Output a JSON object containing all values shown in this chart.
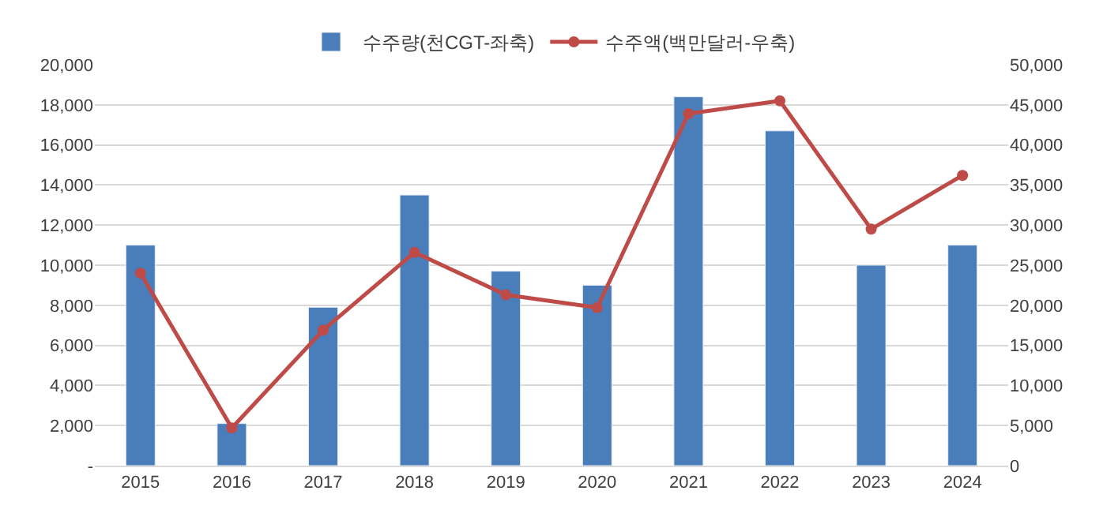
{
  "chart_data": {
    "type": "bar",
    "categories": [
      "2015",
      "2016",
      "2017",
      "2018",
      "2019",
      "2020",
      "2021",
      "2022",
      "2023",
      "2024"
    ],
    "series": [
      {
        "name": "수주량(천CGT-좌축)",
        "color": "#4a7ebb",
        "values": [
          11000,
          2100,
          7900,
          13500,
          9700,
          9000,
          18400,
          16700,
          10000,
          11000
        ]
      },
      {
        "name": "수주액(백만달러-우축)",
        "type": "line",
        "axis": "y2",
        "color": "#be4b48",
        "marker": "circle",
        "values": [
          24000,
          4700,
          16900,
          26600,
          21300,
          19700,
          43900,
          45500,
          29500,
          36200
        ]
      }
    ],
    "ylim": [
      0,
      20000
    ],
    "yticks": [
      {
        "value": 0,
        "label": "-"
      },
      {
        "value": 2000,
        "label": "2,000"
      },
      {
        "value": 4000,
        "label": "4,000"
      },
      {
        "value": 6000,
        "label": "6,000"
      },
      {
        "value": 8000,
        "label": "8,000"
      },
      {
        "value": 10000,
        "label": "10,000"
      },
      {
        "value": 12000,
        "label": "12,000"
      },
      {
        "value": 14000,
        "label": "14,000"
      },
      {
        "value": 16000,
        "label": "16,000"
      },
      {
        "value": 18000,
        "label": "18,000"
      },
      {
        "value": 20000,
        "label": "20,000"
      }
    ],
    "y2lim": [
      0,
      50000
    ],
    "y2ticks": [
      0,
      {
        "value": 5000,
        "label": "5,000"
      },
      {
        "value": 10000,
        "label": "10,000"
      },
      {
        "value": 15000,
        "label": "15,000"
      },
      {
        "value": 20000,
        "label": "20,000"
      },
      {
        "value": 25000,
        "label": "25,000"
      },
      {
        "value": 30000,
        "label": "30,000"
      },
      {
        "value": 35000,
        "label": "35,000"
      },
      {
        "value": 40000,
        "label": "40,000"
      },
      {
        "value": 45000,
        "label": "45,000"
      },
      {
        "value": 50000,
        "label": "50,000"
      }
    ],
    "grid": "y",
    "legend": "top"
  }
}
